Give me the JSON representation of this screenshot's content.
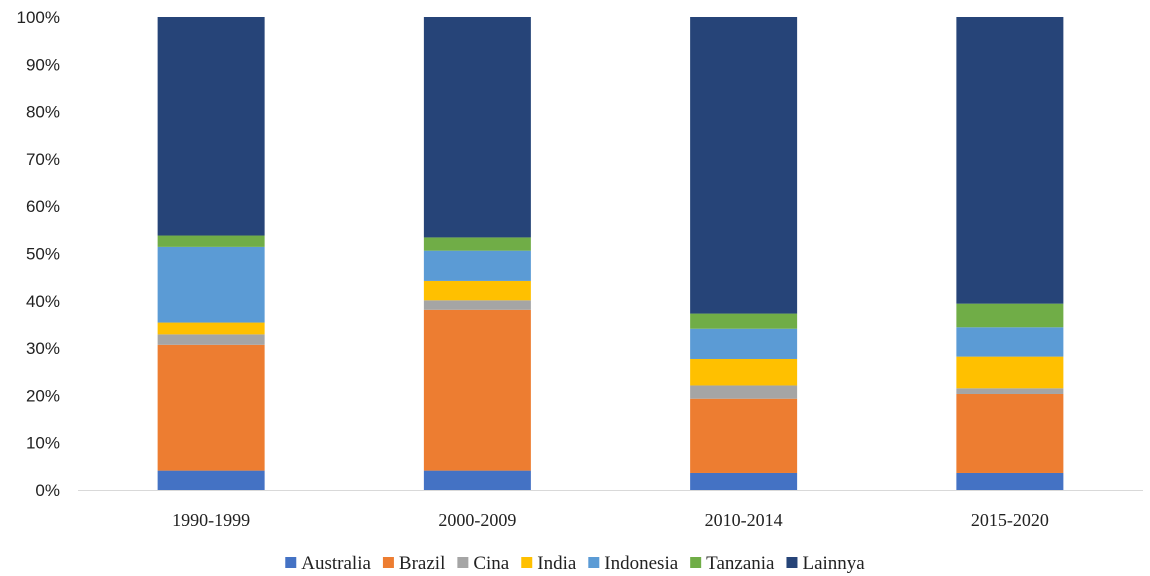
{
  "chart_data": {
    "type": "bar",
    "stacked": true,
    "title": "",
    "xlabel": "",
    "ylabel": "",
    "ylim": [
      0,
      100
    ],
    "y_ticks": [
      "0%",
      "10%",
      "20%",
      "30%",
      "40%",
      "50%",
      "60%",
      "70%",
      "80%",
      "90%",
      "100%"
    ],
    "grid": false,
    "legend_position": "bottom",
    "categories": [
      "1990-1999",
      "2000-2009",
      "2010-2014",
      "2015-2020"
    ],
    "series": [
      {
        "name": "Australia",
        "color": "#4472C4",
        "values": [
          4.1,
          4.1,
          3.6,
          3.6
        ]
      },
      {
        "name": "Brazil",
        "color": "#ED7D31",
        "values": [
          26.6,
          34.0,
          15.7,
          16.7
        ]
      },
      {
        "name": "Cina",
        "color": "#A5A5A5",
        "values": [
          2.2,
          2.0,
          2.8,
          1.2
        ]
      },
      {
        "name": "India",
        "color": "#FFC000",
        "values": [
          2.5,
          4.1,
          5.6,
          6.7
        ]
      },
      {
        "name": "Indonesia",
        "color": "#5B9BD5",
        "values": [
          16.0,
          6.4,
          6.4,
          6.2
        ]
      },
      {
        "name": "Tanzania",
        "color": "#70AD47",
        "values": [
          2.4,
          2.8,
          3.2,
          5.0
        ]
      },
      {
        "name": "Lainnya",
        "color": "#264478",
        "values": [
          46.2,
          46.6,
          62.7,
          60.6
        ]
      }
    ]
  }
}
